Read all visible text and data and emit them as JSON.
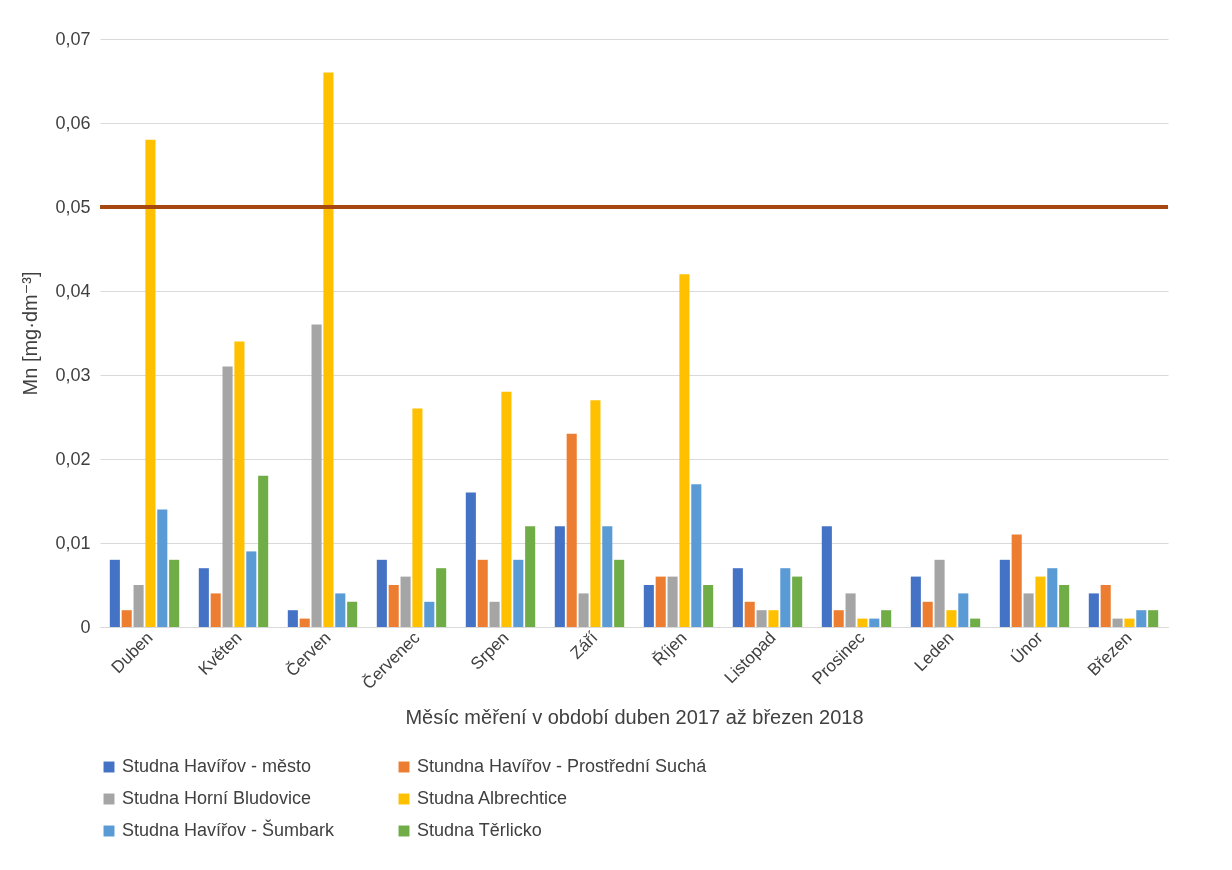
{
  "chart_data": {
    "type": "bar",
    "xlabel": "Měsíc měření v období duben 2017 až březen 2018",
    "ylabel": "Mn [mg·dm⁻³]",
    "categories": [
      "Duben",
      "Květen",
      "Červen",
      "Červenec",
      "Srpen",
      "Září",
      "Říjen",
      "Listopad",
      "Prosinec",
      "Leden",
      "Únor",
      "Březen"
    ],
    "series": [
      {
        "name": "Studna Havířov - město",
        "color": "#4472c4",
        "values": [
          0.008,
          0.007,
          0.002,
          0.008,
          0.016,
          0.012,
          0.005,
          0.007,
          0.012,
          0.006,
          0.008,
          0.004
        ]
      },
      {
        "name": "Stundna Havířov - Prostřední Suchá",
        "color": "#ed7d31",
        "values": [
          0.002,
          0.004,
          0.001,
          0.005,
          0.008,
          0.023,
          0.006,
          0.003,
          0.002,
          0.003,
          0.011,
          0.005
        ]
      },
      {
        "name": "Studna Horní Bludovice",
        "color": "#a5a5a5",
        "values": [
          0.005,
          0.031,
          0.036,
          0.006,
          0.003,
          0.004,
          0.006,
          0.002,
          0.004,
          0.008,
          0.004,
          0.001
        ]
      },
      {
        "name": "Studna Albrechtice",
        "color": "#ffc000",
        "values": [
          0.058,
          0.034,
          0.066,
          0.026,
          0.028,
          0.027,
          0.042,
          0.002,
          0.001,
          0.002,
          0.006,
          0.001
        ]
      },
      {
        "name": "Studna Havířov - Šumbark",
        "color": "#5b9bd5",
        "values": [
          0.014,
          0.009,
          0.004,
          0.003,
          0.008,
          0.012,
          0.017,
          0.007,
          0.001,
          0.004,
          0.007,
          0.002
        ]
      },
      {
        "name": "Studna Těrlicko",
        "color": "#70ad47",
        "values": [
          0.008,
          0.018,
          0.003,
          0.007,
          0.012,
          0.008,
          0.005,
          0.006,
          0.002,
          0.001,
          0.005,
          0.002
        ]
      }
    ],
    "ylim": [
      0,
      0.07
    ],
    "yticks": [
      0,
      {
        "value": 0.01,
        "label": "0,01"
      },
      {
        "value": 0.02,
        "label": "0,02"
      },
      {
        "value": 0.03,
        "label": "0,03"
      },
      {
        "value": 0.04,
        "label": "0,04"
      },
      {
        "value": 0.05,
        "label": "0,05"
      },
      {
        "value": 0.06,
        "label": "0,06"
      },
      {
        "value": 0.07,
        "label": "0,07"
      }
    ],
    "ref_lines": [
      {
        "axis": "y",
        "value": 0.05,
        "color": "#a5470f"
      }
    ],
    "grid": "y",
    "legend": "bottom"
  }
}
